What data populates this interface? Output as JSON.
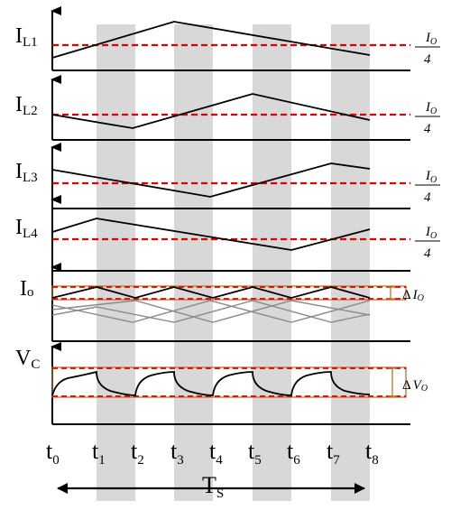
{
  "diagram": {
    "signals": [
      {
        "name": "I",
        "sub": "L1",
        "ref_label": "Io/4",
        "ref_num": "I",
        "ref_num_sub": "O",
        "ref_den": "4"
      },
      {
        "name": "I",
        "sub": "L2",
        "ref_label": "Io/4",
        "ref_num": "I",
        "ref_num_sub": "O",
        "ref_den": "4"
      },
      {
        "name": "I",
        "sub": "L3",
        "ref_label": "Io/4",
        "ref_num": "I",
        "ref_num_sub": "O",
        "ref_den": "4"
      },
      {
        "name": "I",
        "sub": "L4",
        "ref_label": "Io/4",
        "ref_num": "I",
        "ref_num_sub": "O",
        "ref_den": "4"
      },
      {
        "name": "I",
        "sub": "o",
        "delta_symbol": "Δ",
        "delta_var": "I",
        "delta_var_sub": "O"
      },
      {
        "name": "V",
        "sub": "C",
        "delta_symbol": "Δ",
        "delta_var": "V",
        "delta_var_sub": "O"
      }
    ],
    "time_labels": [
      {
        "t": "t",
        "sub": "0"
      },
      {
        "t": "t",
        "sub": "1"
      },
      {
        "t": "t",
        "sub": "2"
      },
      {
        "t": "t",
        "sub": "3"
      },
      {
        "t": "t",
        "sub": "4"
      },
      {
        "t": "t",
        "sub": "5"
      },
      {
        "t": "t",
        "sub": "6"
      },
      {
        "t": "t",
        "sub": "7"
      },
      {
        "t": "t",
        "sub": "8"
      }
    ],
    "period": {
      "name": "T",
      "sub": "S"
    },
    "colors": {
      "shade": "#d8d8d8",
      "ref_line": "#e00000",
      "band": "#c0702a",
      "waveform": "#000000",
      "ripple_phase": "#8a8a8a"
    }
  }
}
